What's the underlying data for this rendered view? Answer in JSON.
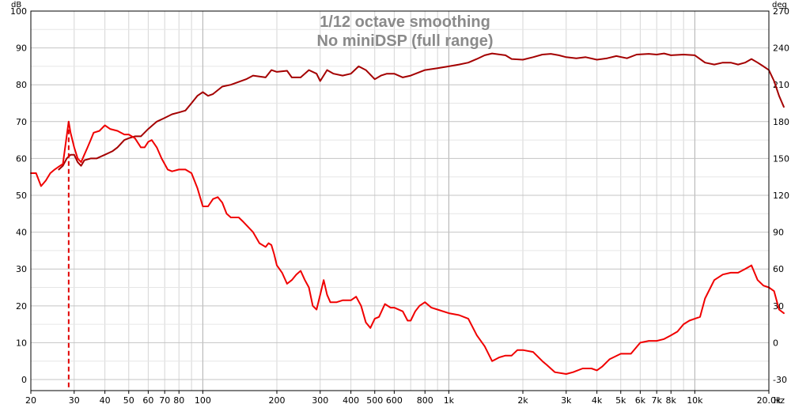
{
  "chart_data": {
    "type": "line",
    "title": "1/12 octave smoothing",
    "subtitle": "No miniDSP (full range)",
    "x_scale": "log",
    "xlim": [
      20,
      20000
    ],
    "x_ticks": [
      {
        "v": 20,
        "label": "20"
      },
      {
        "v": 30,
        "label": "30"
      },
      {
        "v": 40,
        "label": "40"
      },
      {
        "v": 50,
        "label": "50"
      },
      {
        "v": 60,
        "label": "60"
      },
      {
        "v": 70,
        "label": "70"
      },
      {
        "v": 80,
        "label": "80"
      },
      {
        "v": 100,
        "label": "100"
      },
      {
        "v": 200,
        "label": "200"
      },
      {
        "v": 300,
        "label": "300"
      },
      {
        "v": 400,
        "label": "400"
      },
      {
        "v": 500,
        "label": "500"
      },
      {
        "v": 600,
        "label": "600"
      },
      {
        "v": 800,
        "label": "800"
      },
      {
        "v": 1000,
        "label": "1k"
      },
      {
        "v": 2000,
        "label": "2k"
      },
      {
        "v": 3000,
        "label": "3k"
      },
      {
        "v": 4000,
        "label": "4k"
      },
      {
        "v": 5000,
        "label": "5k"
      },
      {
        "v": 6000,
        "label": "6k"
      },
      {
        "v": 7000,
        "label": "7k"
      },
      {
        "v": 8000,
        "label": "8k"
      },
      {
        "v": 10000,
        "label": "10k"
      },
      {
        "v": 20000,
        "label": "20.0k"
      }
    ],
    "x_unit": "Hz",
    "y_left_unit": "dB",
    "ylim_left": [
      -3,
      100
    ],
    "y_left_ticks": [
      0,
      10,
      20,
      30,
      40,
      50,
      60,
      70,
      80,
      90,
      100
    ],
    "y_right_unit": "deg",
    "ylim_right": [
      -39,
      270
    ],
    "y_right_ticks": [
      -30,
      0,
      30,
      60,
      90,
      120,
      150,
      180,
      210,
      240,
      270
    ],
    "grid": true,
    "marker": {
      "x": 28.5,
      "style": "dashed",
      "color": "#e00000"
    },
    "series": [
      {
        "axis": "left",
        "color": "#a40000",
        "points": [
          [
            26,
            57
          ],
          [
            27,
            58
          ],
          [
            28,
            60
          ],
          [
            29,
            61
          ],
          [
            30,
            61
          ],
          [
            31,
            59
          ],
          [
            32,
            58
          ],
          [
            33,
            59.5
          ],
          [
            35,
            60
          ],
          [
            37,
            60
          ],
          [
            40,
            61
          ],
          [
            43,
            62
          ],
          [
            45,
            63
          ],
          [
            48,
            65
          ],
          [
            50,
            65.5
          ],
          [
            53,
            66
          ],
          [
            56,
            66
          ],
          [
            60,
            68
          ],
          [
            65,
            70
          ],
          [
            70,
            71
          ],
          [
            75,
            72
          ],
          [
            80,
            72.5
          ],
          [
            85,
            73
          ],
          [
            90,
            75
          ],
          [
            95,
            77
          ],
          [
            100,
            78
          ],
          [
            105,
            77
          ],
          [
            110,
            77.5
          ],
          [
            120,
            79.5
          ],
          [
            130,
            80
          ],
          [
            150,
            81.5
          ],
          [
            160,
            82.5
          ],
          [
            180,
            82
          ],
          [
            190,
            84
          ],
          [
            200,
            83.5
          ],
          [
            220,
            83.8
          ],
          [
            230,
            82
          ],
          [
            250,
            82
          ],
          [
            270,
            84
          ],
          [
            290,
            83
          ],
          [
            300,
            81
          ],
          [
            320,
            84
          ],
          [
            340,
            83
          ],
          [
            370,
            82.5
          ],
          [
            400,
            83
          ],
          [
            430,
            85
          ],
          [
            460,
            84
          ],
          [
            500,
            81.5
          ],
          [
            530,
            82.5
          ],
          [
            560,
            83
          ],
          [
            600,
            83
          ],
          [
            650,
            82
          ],
          [
            700,
            82.5
          ],
          [
            800,
            84
          ],
          [
            900,
            84.5
          ],
          [
            1000,
            85
          ],
          [
            1100,
            85.5
          ],
          [
            1200,
            86
          ],
          [
            1300,
            87
          ],
          [
            1400,
            88
          ],
          [
            1500,
            88.5
          ],
          [
            1700,
            88
          ],
          [
            1800,
            87
          ],
          [
            2000,
            86.8
          ],
          [
            2200,
            87.5
          ],
          [
            2400,
            88.2
          ],
          [
            2600,
            88.4
          ],
          [
            2800,
            88
          ],
          [
            3000,
            87.5
          ],
          [
            3300,
            87.2
          ],
          [
            3600,
            87.5
          ],
          [
            4000,
            86.8
          ],
          [
            4400,
            87.2
          ],
          [
            4800,
            87.8
          ],
          [
            5300,
            87.2
          ],
          [
            5800,
            88.2
          ],
          [
            6500,
            88.4
          ],
          [
            7000,
            88.2
          ],
          [
            7500,
            88.5
          ],
          [
            8000,
            88
          ],
          [
            9000,
            88.2
          ],
          [
            10000,
            88
          ],
          [
            11000,
            86
          ],
          [
            12000,
            85.5
          ],
          [
            13000,
            86
          ],
          [
            14000,
            86
          ],
          [
            15000,
            85.5
          ],
          [
            16000,
            86
          ],
          [
            17000,
            87
          ],
          [
            18000,
            86
          ],
          [
            19000,
            85
          ],
          [
            20000,
            84
          ],
          [
            21000,
            81
          ],
          [
            22000,
            77
          ],
          [
            23000,
            74
          ]
        ]
      },
      {
        "axis": "left",
        "color": "#f00000",
        "points": [
          [
            20,
            56
          ],
          [
            21,
            56
          ],
          [
            22,
            52.5
          ],
          [
            23,
            54
          ],
          [
            24,
            56
          ],
          [
            25,
            57
          ],
          [
            26,
            57.8
          ],
          [
            27,
            58.5
          ],
          [
            28.5,
            70
          ],
          [
            29,
            67
          ],
          [
            30,
            63
          ],
          [
            31,
            60
          ],
          [
            32,
            59
          ],
          [
            33,
            61
          ],
          [
            34,
            63
          ],
          [
            35,
            65
          ],
          [
            36,
            67
          ],
          [
            38,
            67.5
          ],
          [
            40,
            69
          ],
          [
            42,
            68
          ],
          [
            45,
            67.5
          ],
          [
            48,
            66.5
          ],
          [
            50,
            66.5
          ],
          [
            53,
            65.5
          ],
          [
            56,
            63
          ],
          [
            58,
            63
          ],
          [
            60,
            64.5
          ],
          [
            62,
            65
          ],
          [
            65,
            63
          ],
          [
            68,
            60
          ],
          [
            72,
            57
          ],
          [
            75,
            56.5
          ],
          [
            80,
            57
          ],
          [
            85,
            57
          ],
          [
            90,
            56
          ],
          [
            95,
            52
          ],
          [
            100,
            47
          ],
          [
            105,
            47
          ],
          [
            110,
            49
          ],
          [
            115,
            49.5
          ],
          [
            120,
            48
          ],
          [
            125,
            45
          ],
          [
            130,
            44
          ],
          [
            140,
            44
          ],
          [
            145,
            43
          ],
          [
            150,
            42
          ],
          [
            160,
            40
          ],
          [
            170,
            37
          ],
          [
            180,
            36
          ],
          [
            185,
            37
          ],
          [
            190,
            36.5
          ],
          [
            195,
            34
          ],
          [
            200,
            31
          ],
          [
            210,
            29
          ],
          [
            220,
            26
          ],
          [
            230,
            27
          ],
          [
            240,
            28.5
          ],
          [
            250,
            29.5
          ],
          [
            260,
            27
          ],
          [
            270,
            25
          ],
          [
            280,
            20
          ],
          [
            290,
            19
          ],
          [
            300,
            23
          ],
          [
            310,
            27
          ],
          [
            320,
            23
          ],
          [
            330,
            21
          ],
          [
            350,
            21
          ],
          [
            370,
            21.5
          ],
          [
            400,
            21.5
          ],
          [
            420,
            22.5
          ],
          [
            440,
            20
          ],
          [
            460,
            15.5
          ],
          [
            480,
            14
          ],
          [
            500,
            16.5
          ],
          [
            520,
            17
          ],
          [
            550,
            20.5
          ],
          [
            580,
            19.5
          ],
          [
            600,
            19.5
          ],
          [
            650,
            18.5
          ],
          [
            680,
            16
          ],
          [
            700,
            16
          ],
          [
            730,
            18.5
          ],
          [
            760,
            20
          ],
          [
            800,
            21
          ],
          [
            850,
            19.5
          ],
          [
            900,
            19
          ],
          [
            1000,
            18
          ],
          [
            1100,
            17.5
          ],
          [
            1200,
            16.5
          ],
          [
            1300,
            12
          ],
          [
            1400,
            9
          ],
          [
            1500,
            5
          ],
          [
            1600,
            6
          ],
          [
            1700,
            6.5
          ],
          [
            1800,
            6.5
          ],
          [
            1900,
            8
          ],
          [
            2000,
            8
          ],
          [
            2200,
            7.5
          ],
          [
            2400,
            5
          ],
          [
            2500,
            4
          ],
          [
            2700,
            2
          ],
          [
            3000,
            1.5
          ],
          [
            3200,
            2
          ],
          [
            3500,
            3
          ],
          [
            3800,
            3
          ],
          [
            4000,
            2.5
          ],
          [
            4200,
            3.5
          ],
          [
            4500,
            5.5
          ],
          [
            5000,
            7
          ],
          [
            5500,
            7
          ],
          [
            6000,
            10
          ],
          [
            6500,
            10.5
          ],
          [
            7000,
            10.5
          ],
          [
            7500,
            11
          ],
          [
            8000,
            12
          ],
          [
            8500,
            13
          ],
          [
            9000,
            15
          ],
          [
            9500,
            16
          ],
          [
            10000,
            16.5
          ],
          [
            10500,
            17
          ],
          [
            11000,
            22
          ],
          [
            12000,
            27
          ],
          [
            13000,
            28.5
          ],
          [
            14000,
            29
          ],
          [
            15000,
            29
          ],
          [
            16000,
            30
          ],
          [
            17000,
            31
          ],
          [
            18000,
            27
          ],
          [
            19000,
            25.5
          ],
          [
            20000,
            25
          ],
          [
            21000,
            24
          ],
          [
            22000,
            19
          ],
          [
            23000,
            18
          ]
        ]
      }
    ]
  }
}
